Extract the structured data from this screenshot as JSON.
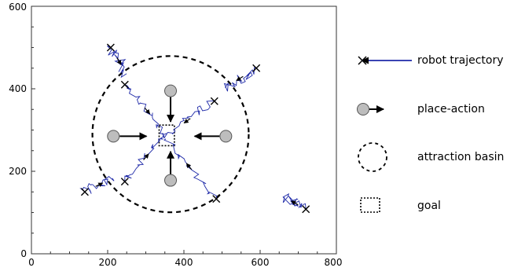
{
  "chart_data": {
    "type": "scatter",
    "xlim": [
      0,
      800
    ],
    "ylim": [
      0,
      600
    ],
    "x_ticks": [
      "0",
      "200",
      "400",
      "600",
      "800"
    ],
    "y_ticks": [
      "0",
      "200",
      "400",
      "600"
    ],
    "grid": false,
    "legend_placement": "right",
    "legend": [
      {
        "key": "robot",
        "label": "robot trajectory"
      },
      {
        "key": "place",
        "label": "place-action"
      },
      {
        "key": "basin",
        "label": "attraction basin"
      },
      {
        "key": "goal",
        "label": "goal"
      }
    ],
    "attraction_basin": {
      "center": [
        365,
        290
      ],
      "radius": 205
    },
    "goal": {
      "x": [
        335,
        375
      ],
      "y": [
        262,
        312
      ]
    },
    "place_actions": [
      {
        "at": [
          365,
          395
        ],
        "toward": [
          365,
          320
        ]
      },
      {
        "at": [
          215,
          285
        ],
        "toward": [
          302,
          285
        ]
      },
      {
        "at": [
          510,
          285
        ],
        "toward": [
          428,
          285
        ]
      },
      {
        "at": [
          365,
          178
        ],
        "toward": [
          365,
          248
        ]
      }
    ],
    "trajectory_starts": [
      [
        208,
        500
      ],
      [
        245,
        410
      ],
      [
        480,
        370
      ],
      [
        590,
        450
      ],
      [
        245,
        175
      ],
      [
        485,
        133
      ],
      [
        720,
        108
      ],
      [
        140,
        150
      ]
    ]
  },
  "colors": {
    "trajectory": "#1f2aa8",
    "place_fill": "#bdbdbd",
    "marks": "#000000"
  }
}
